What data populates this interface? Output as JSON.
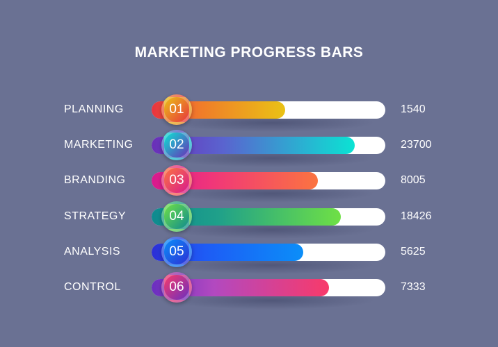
{
  "chart_data": {
    "type": "bar",
    "title": "MARKETING PROGRESS BARS",
    "categories": [
      "PLANNING",
      "MARKETING",
      "BRANDING",
      "STRATEGY",
      "ANALYSIS",
      "CONTROL"
    ],
    "numbers": [
      "01",
      "02",
      "03",
      "04",
      "05",
      "06"
    ],
    "values": [
      1540,
      23700,
      8005,
      18426,
      5625,
      7333
    ],
    "progress": [
      0.57,
      0.87,
      0.71,
      0.81,
      0.65,
      0.76
    ],
    "colors": [
      [
        "#e8333f",
        "#f07a2a",
        "#eac215"
      ],
      [
        "#6a2fb8",
        "#5a63cf",
        "#0be3d3"
      ],
      [
        "#d8198e",
        "#f0357a",
        "#fb7440"
      ],
      [
        "#0e8a8f",
        "#1fa08a",
        "#6fe045"
      ],
      [
        "#2c2fd6",
        "#1e5bf5",
        "#0b8ef8"
      ],
      [
        "#6a2fc0",
        "#b249c0",
        "#f83a6a"
      ]
    ]
  }
}
